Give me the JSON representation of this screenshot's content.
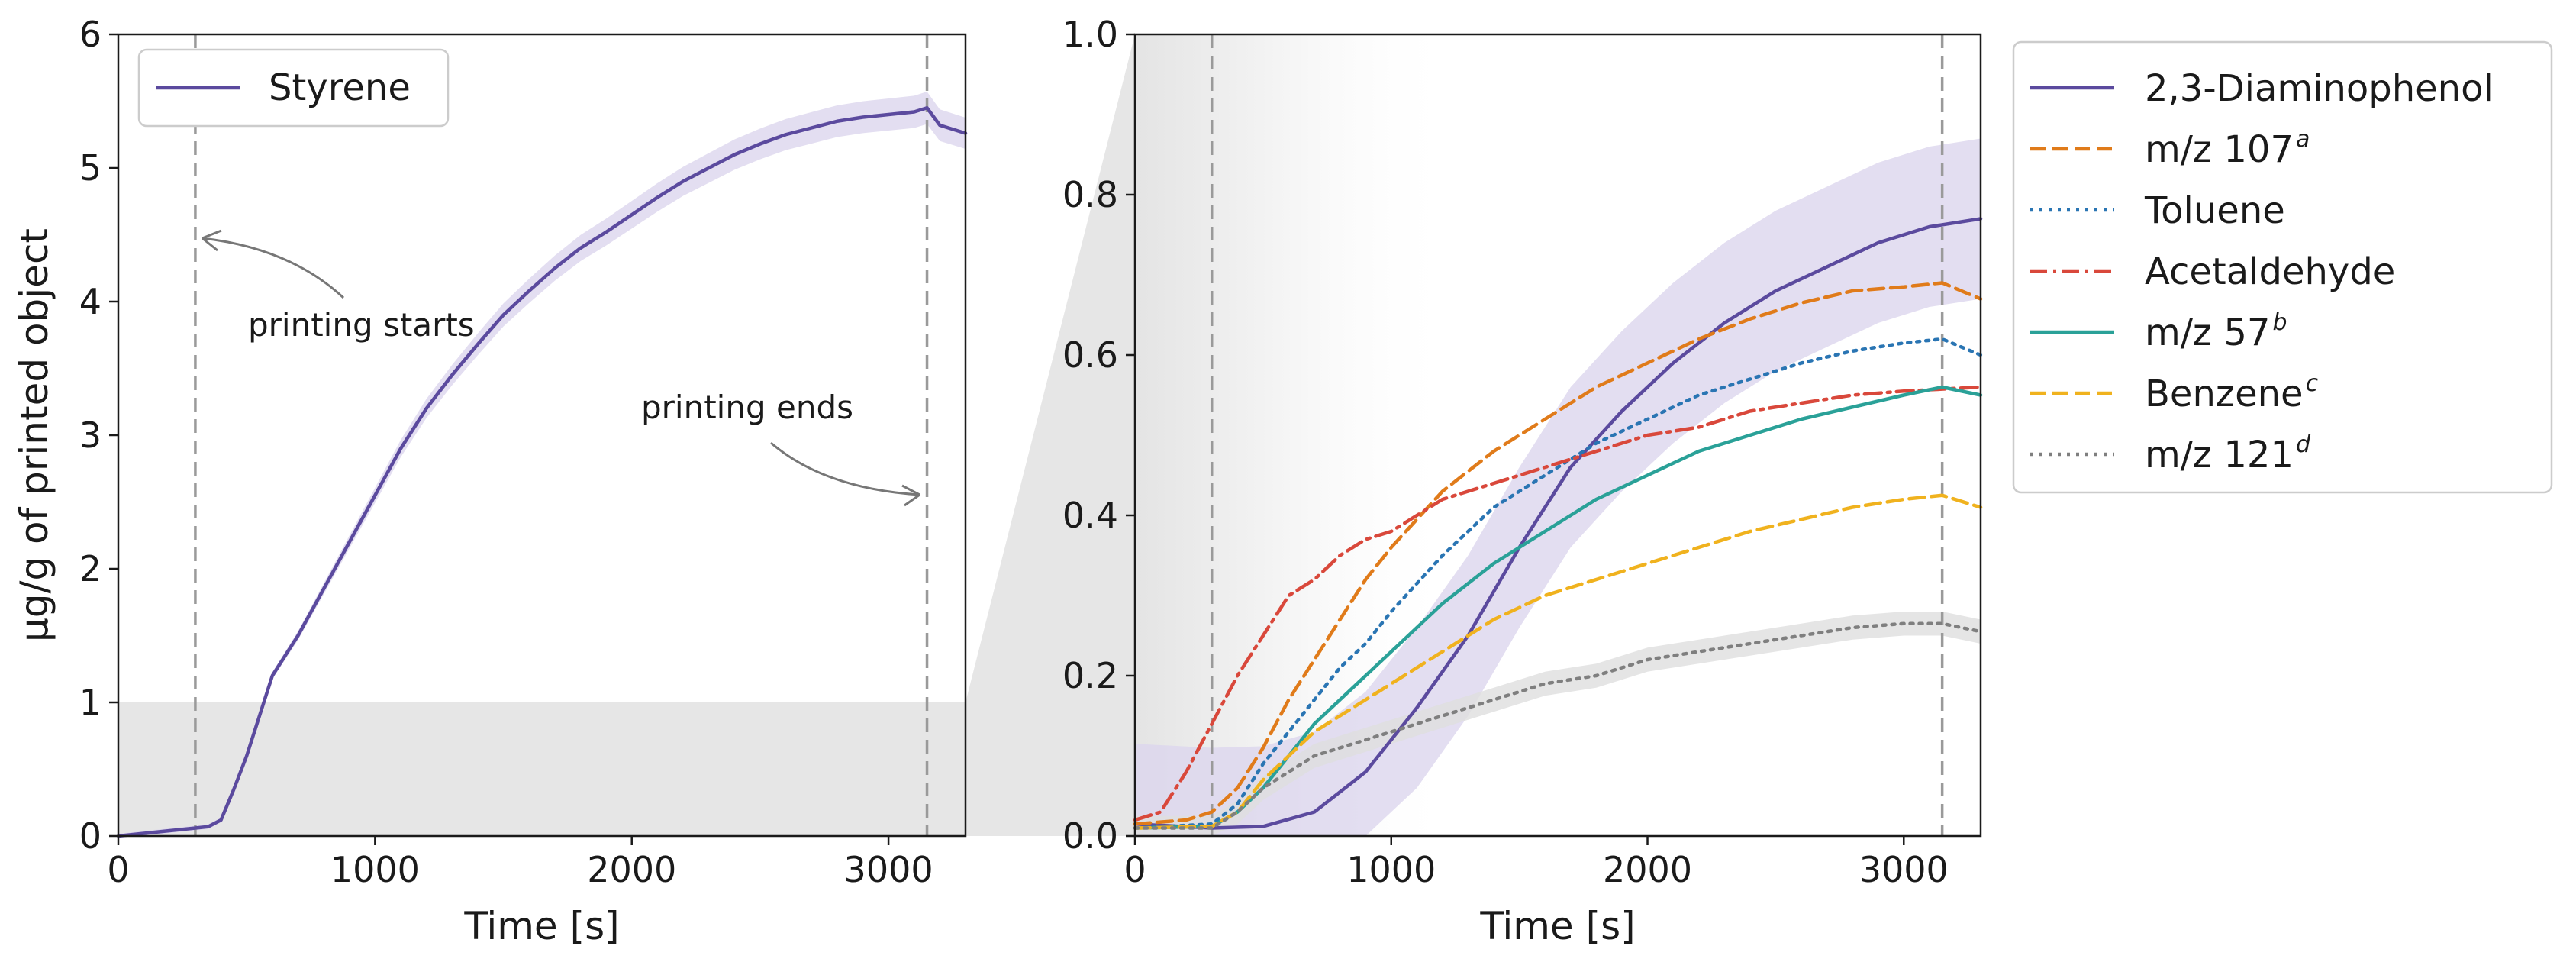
{
  "chart_data": [
    {
      "type": "line",
      "panel": "left",
      "xlabel": "Time [s]",
      "ylabel": "µg/g of printed object",
      "xlim": [
        0,
        3300
      ],
      "ylim": [
        0,
        6
      ],
      "xticks": [
        0,
        1000,
        2000,
        3000
      ],
      "yticks": [
        0,
        1,
        2,
        3,
        4,
        5,
        6
      ],
      "grid": false,
      "legend_position": "top-left",
      "vlines": [
        300,
        3150
      ],
      "highlight_region": {
        "x": [
          0,
          3300
        ],
        "y": [
          0,
          1
        ]
      },
      "annotations": [
        {
          "text": "printing starts",
          "x": 500,
          "y": 3.85,
          "arrow_to": [
            300,
            4.45
          ]
        },
        {
          "text": "printing ends",
          "x": 2500,
          "y": 3.15,
          "arrow_to": [
            3150,
            2.55
          ]
        }
      ],
      "series": [
        {
          "name": "Styrene",
          "color": "#5b4a9e",
          "band_color": "#dcd6ee",
          "band": 0.12,
          "x": [
            0,
            100,
            200,
            300,
            350,
            400,
            450,
            500,
            600,
            700,
            800,
            900,
            1000,
            1100,
            1200,
            1300,
            1400,
            1500,
            1600,
            1700,
            1800,
            1900,
            2000,
            2100,
            2200,
            2300,
            2400,
            2500,
            2600,
            2700,
            2800,
            2900,
            3000,
            3100,
            3150,
            3200,
            3300
          ],
          "values": [
            0.0,
            0.02,
            0.04,
            0.06,
            0.07,
            0.12,
            0.35,
            0.6,
            1.2,
            1.5,
            1.85,
            2.2,
            2.55,
            2.9,
            3.2,
            3.45,
            3.68,
            3.9,
            4.08,
            4.25,
            4.4,
            4.52,
            4.65,
            4.78,
            4.9,
            5.0,
            5.1,
            5.18,
            5.25,
            5.3,
            5.35,
            5.38,
            5.4,
            5.42,
            5.45,
            5.32,
            5.26
          ]
        }
      ]
    },
    {
      "type": "line",
      "panel": "right",
      "xlabel": "Time [s]",
      "ylabel": "",
      "xlim": [
        0,
        3300
      ],
      "ylim": [
        0,
        1.0
      ],
      "xticks": [
        0,
        1000,
        2000,
        3000
      ],
      "yticks": [
        0.0,
        0.2,
        0.4,
        0.6,
        0.8,
        1.0
      ],
      "grid": false,
      "legend_position": "outside-right",
      "vlines": [
        300,
        3150
      ],
      "series": [
        {
          "name": "2,3-Diaminophenol",
          "sup": "",
          "color": "#5b4a9e",
          "dash": "solid",
          "band": 0.1,
          "band_color": "#dcd6ee",
          "x": [
            0,
            300,
            500,
            700,
            900,
            1100,
            1300,
            1500,
            1700,
            1900,
            2100,
            2300,
            2500,
            2700,
            2900,
            3100,
            3300
          ],
          "values": [
            0.015,
            0.01,
            0.012,
            0.03,
            0.08,
            0.16,
            0.25,
            0.36,
            0.46,
            0.53,
            0.59,
            0.64,
            0.68,
            0.71,
            0.74,
            0.76,
            0.77
          ]
        },
        {
          "name": "m/z 107",
          "sup": "a",
          "color": "#e07b1a",
          "dash": "dashed",
          "x": [
            0,
            200,
            300,
            400,
            500,
            600,
            700,
            800,
            900,
            1000,
            1200,
            1400,
            1600,
            1800,
            2000,
            2200,
            2400,
            2600,
            2800,
            3000,
            3150,
            3300
          ],
          "values": [
            0.015,
            0.02,
            0.03,
            0.06,
            0.11,
            0.17,
            0.22,
            0.27,
            0.32,
            0.36,
            0.43,
            0.48,
            0.52,
            0.56,
            0.59,
            0.62,
            0.645,
            0.665,
            0.68,
            0.685,
            0.69,
            0.67
          ]
        },
        {
          "name": "Toluene",
          "sup": "",
          "color": "#2a75b3",
          "dash": "dotted",
          "x": [
            0,
            300,
            400,
            500,
            600,
            700,
            800,
            900,
            1000,
            1200,
            1400,
            1600,
            1800,
            2000,
            2200,
            2400,
            2600,
            2800,
            3000,
            3150,
            3300
          ],
          "values": [
            0.01,
            0.015,
            0.04,
            0.09,
            0.13,
            0.17,
            0.21,
            0.24,
            0.28,
            0.35,
            0.41,
            0.45,
            0.49,
            0.52,
            0.55,
            0.57,
            0.59,
            0.605,
            0.615,
            0.62,
            0.6
          ]
        },
        {
          "name": "Acetaldehyde",
          "sup": "",
          "color": "#d9483b",
          "dash": "dashdot",
          "x": [
            0,
            100,
            200,
            300,
            400,
            500,
            600,
            700,
            800,
            900,
            1000,
            1200,
            1400,
            1600,
            1800,
            2000,
            2200,
            2400,
            2600,
            2800,
            3000,
            3300
          ],
          "values": [
            0.02,
            0.03,
            0.08,
            0.14,
            0.2,
            0.25,
            0.3,
            0.32,
            0.35,
            0.37,
            0.38,
            0.42,
            0.44,
            0.46,
            0.48,
            0.5,
            0.51,
            0.53,
            0.54,
            0.55,
            0.555,
            0.56
          ]
        },
        {
          "name": "m/z 57",
          "sup": "b",
          "color": "#2aa198",
          "dash": "solid",
          "x": [
            0,
            300,
            400,
            500,
            600,
            700,
            800,
            900,
            1000,
            1200,
            1400,
            1600,
            1800,
            2000,
            2200,
            2400,
            2600,
            2800,
            3000,
            3150,
            3300
          ],
          "values": [
            0.01,
            0.012,
            0.03,
            0.06,
            0.1,
            0.14,
            0.17,
            0.2,
            0.23,
            0.29,
            0.34,
            0.38,
            0.42,
            0.45,
            0.48,
            0.5,
            0.52,
            0.535,
            0.55,
            0.56,
            0.55
          ]
        },
        {
          "name": "Benzene",
          "sup": "c",
          "color": "#f0b21e",
          "dash": "dashed",
          "x": [
            0,
            300,
            400,
            500,
            600,
            700,
            800,
            900,
            1000,
            1200,
            1400,
            1600,
            1800,
            2000,
            2200,
            2400,
            2600,
            2800,
            3000,
            3150,
            3300
          ],
          "values": [
            0.01,
            0.012,
            0.03,
            0.07,
            0.1,
            0.13,
            0.15,
            0.17,
            0.19,
            0.23,
            0.27,
            0.3,
            0.32,
            0.34,
            0.36,
            0.38,
            0.395,
            0.41,
            0.42,
            0.425,
            0.41
          ]
        },
        {
          "name": "m/z 121",
          "sup": "d",
          "color": "#7f7f7f",
          "dash": "dotted",
          "band": 0.015,
          "band_color": "#dedede",
          "x": [
            0,
            300,
            400,
            500,
            600,
            700,
            800,
            900,
            1000,
            1200,
            1400,
            1600,
            1800,
            2000,
            2200,
            2400,
            2600,
            2800,
            3000,
            3150,
            3300
          ],
          "values": [
            0.01,
            0.01,
            0.03,
            0.06,
            0.08,
            0.1,
            0.11,
            0.12,
            0.13,
            0.15,
            0.17,
            0.19,
            0.2,
            0.22,
            0.23,
            0.24,
            0.25,
            0.26,
            0.265,
            0.265,
            0.255
          ]
        }
      ]
    }
  ]
}
